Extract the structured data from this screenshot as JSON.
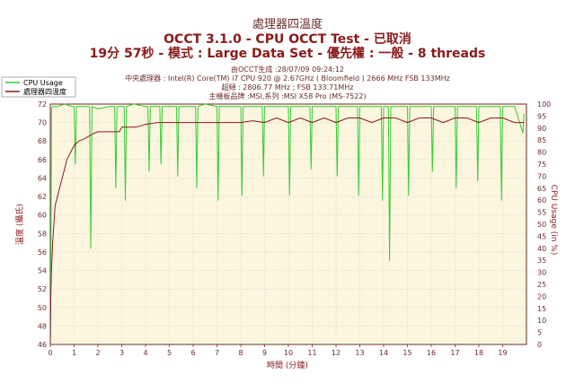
{
  "header": {
    "title_zh": "處理器四溫度",
    "title_main": "OCCT 3.1.0 - CPU OCCT Test - 已取消",
    "subtitle": "19分 57秒 - 模式 : Large Data Set - 優先權 : 一般 - 8 threads",
    "info_lines": [
      "由OCCT生成 :28/07/09 09:24:12",
      "中央處理器 : Intel(R) Core(TM) i7 CPU 920 @ 2.67GHz ( Bloomfield ) 2666 MHz FSB 133MHz",
      "超頻 : 2806.77 MHz ; FSB 133.71MHz",
      "主機板品牌 :MSI,系列 :MSI X58 Pro (MS-7522)"
    ]
  },
  "colors": {
    "cpu_usage": "#33cc33",
    "temperature": "#8b1a1a",
    "plot_bg": "#fcf6df",
    "grid": "#b8b8b8",
    "axis_text": "#6b2b2b"
  },
  "chart_data": {
    "type": "line",
    "xlabel": "時間 (分鐘)",
    "ylabel_left": "溫度 (攝氏)",
    "ylabel_right": "CPU Usage (in %)",
    "xlim": [
      0,
      20
    ],
    "ylim_left": [
      46,
      72
    ],
    "ylim_right": [
      0,
      100
    ],
    "x_ticks": [
      "0",
      "1",
      "2",
      "3",
      "4",
      "5",
      "6",
      "7",
      "8",
      "9",
      "10",
      "11",
      "12",
      "13",
      "14",
      "15",
      "16",
      "17",
      "18",
      "19"
    ],
    "y_left_ticks": [
      "46",
      "48",
      "50",
      "52",
      "54",
      "56",
      "58",
      "60",
      "62",
      "64",
      "66",
      "68",
      "70",
      "72"
    ],
    "y_right_ticks": [
      "0",
      "5",
      "10",
      "15",
      "20",
      "25",
      "30",
      "35",
      "40",
      "45",
      "50",
      "55",
      "60",
      "65",
      "70",
      "75",
      "80",
      "85",
      "90",
      "95",
      "100"
    ],
    "grid": true,
    "legend_position": "top-left",
    "series": [
      {
        "name": "CPU Usage",
        "axis": "right",
        "x": [
          0,
          0.02,
          0.05,
          0.1,
          0.3,
          0.6,
          0.9,
          1.0,
          1.05,
          1.1,
          1.5,
          1.65,
          1.7,
          1.75,
          2.0,
          2.5,
          2.7,
          2.75,
          2.8,
          3.0,
          3.1,
          3.15,
          3.2,
          3.5,
          4.0,
          4.1,
          4.15,
          4.2,
          4.6,
          4.65,
          4.7,
          5.2,
          5.3,
          5.35,
          5.4,
          6.0,
          6.1,
          6.15,
          6.2,
          6.5,
          7.0,
          7.05,
          7.1,
          7.5,
          8.0,
          8.05,
          8.1,
          8.5,
          8.9,
          8.95,
          9.0,
          9.5,
          10.0,
          10.05,
          10.1,
          10.5,
          10.9,
          10.95,
          11.0,
          11.5,
          12.0,
          12.05,
          12.1,
          12.5,
          12.9,
          12.95,
          13.0,
          13.5,
          13.9,
          13.95,
          14.0,
          14.2,
          14.25,
          14.3,
          14.6,
          15.0,
          15.05,
          15.1,
          15.5,
          16.0,
          16.05,
          16.1,
          16.5,
          17.0,
          17.05,
          17.1,
          17.5,
          17.9,
          17.95,
          18.0,
          18.5,
          18.9,
          18.95,
          19.0,
          19.5,
          19.85,
          19.9
        ],
        "values": [
          0,
          25,
          98,
          99,
          99,
          100,
          99,
          99,
          75,
          99,
          99,
          99,
          40,
          99,
          98,
          99,
          99,
          65,
          99,
          99,
          99,
          60,
          99,
          100,
          99,
          99,
          72,
          99,
          99,
          75,
          99,
          99,
          99,
          70,
          99,
          99,
          99,
          65,
          99,
          100,
          99,
          60,
          99,
          99,
          99,
          62,
          99,
          99,
          99,
          70,
          99,
          99,
          99,
          62,
          99,
          99,
          99,
          73,
          99,
          99,
          99,
          70,
          99,
          99,
          99,
          62,
          99,
          99,
          99,
          60,
          99,
          99,
          35,
          99,
          99,
          99,
          62,
          99,
          99,
          99,
          72,
          99,
          99,
          99,
          65,
          99,
          99,
          99,
          68,
          99,
          99,
          99,
          60,
          99,
          99,
          88,
          96
        ]
      },
      {
        "name": "處理器四溫度",
        "axis": "left",
        "x": [
          0,
          0.02,
          0.05,
          0.1,
          0.15,
          0.2,
          0.3,
          0.4,
          0.5,
          0.6,
          0.7,
          0.8,
          0.9,
          1.0,
          1.2,
          1.4,
          1.6,
          1.8,
          2.0,
          2.3,
          2.6,
          2.9,
          3.0,
          3.3,
          3.6,
          4.0,
          4.5,
          5.0,
          5.5,
          6.0,
          6.5,
          7.0,
          7.5,
          8.0,
          8.5,
          9.0,
          9.5,
          10.0,
          10.5,
          11.0,
          11.5,
          12.0,
          12.5,
          13.0,
          13.5,
          14.0,
          14.5,
          15.0,
          15.5,
          16.0,
          16.5,
          17.0,
          17.5,
          18.0,
          18.5,
          19.0,
          19.5,
          19.9
        ],
        "values": [
          46,
          51,
          54,
          57,
          59,
          61,
          62,
          63,
          64,
          65,
          66,
          66.5,
          67,
          67.5,
          68,
          68.2,
          68.5,
          68.8,
          69,
          69,
          69,
          69,
          69.5,
          69.5,
          69.5,
          69.8,
          70,
          70,
          70,
          70,
          70,
          70,
          70,
          70,
          70.2,
          70,
          70.5,
          70,
          70.5,
          70,
          70.5,
          70,
          70.5,
          70.5,
          70,
          70.5,
          70.5,
          70,
          70.5,
          70.5,
          70,
          70.5,
          70.5,
          70,
          70.5,
          70.5,
          70,
          70
        ]
      }
    ]
  }
}
